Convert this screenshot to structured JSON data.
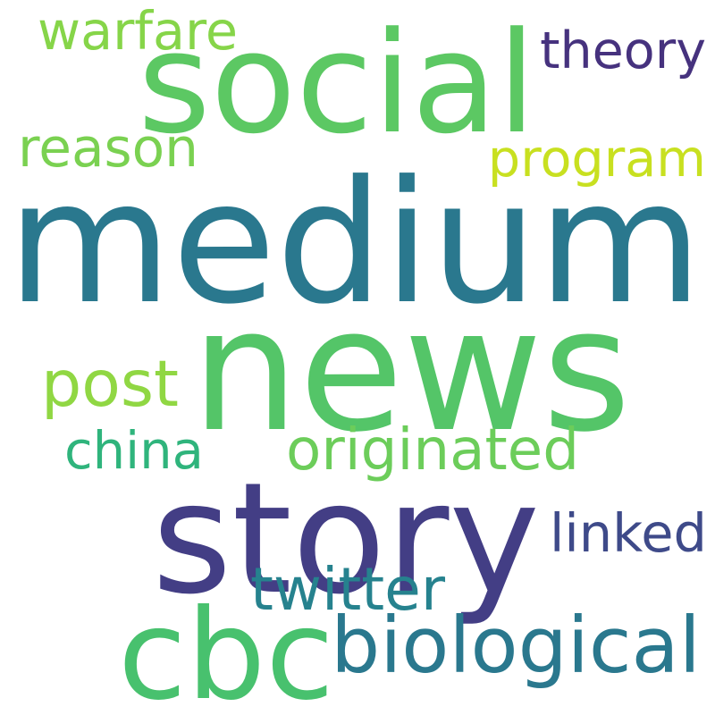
{
  "words": [
    {
      "text": "medium",
      "color": "#2a788e"
    },
    {
      "text": "news",
      "color": "#54c568"
    },
    {
      "text": "story",
      "color": "#433e85"
    },
    {
      "text": "social",
      "color": "#5cc863"
    },
    {
      "text": "cbc",
      "color": "#48c16e"
    },
    {
      "text": "biological",
      "color": "#2a788e"
    },
    {
      "text": "originated",
      "color": "#6ccd5a"
    },
    {
      "text": "program",
      "color": "#c8e020"
    },
    {
      "text": "post",
      "color": "#90d743"
    },
    {
      "text": "theory",
      "color": "#46327e"
    },
    {
      "text": "reason",
      "color": "#7ad151"
    },
    {
      "text": "warfare",
      "color": "#86d549"
    },
    {
      "text": "linked",
      "color": "#3e4a89"
    },
    {
      "text": "china",
      "color": "#2fb47c"
    },
    {
      "text": "twitter",
      "color": "#26828e"
    }
  ]
}
